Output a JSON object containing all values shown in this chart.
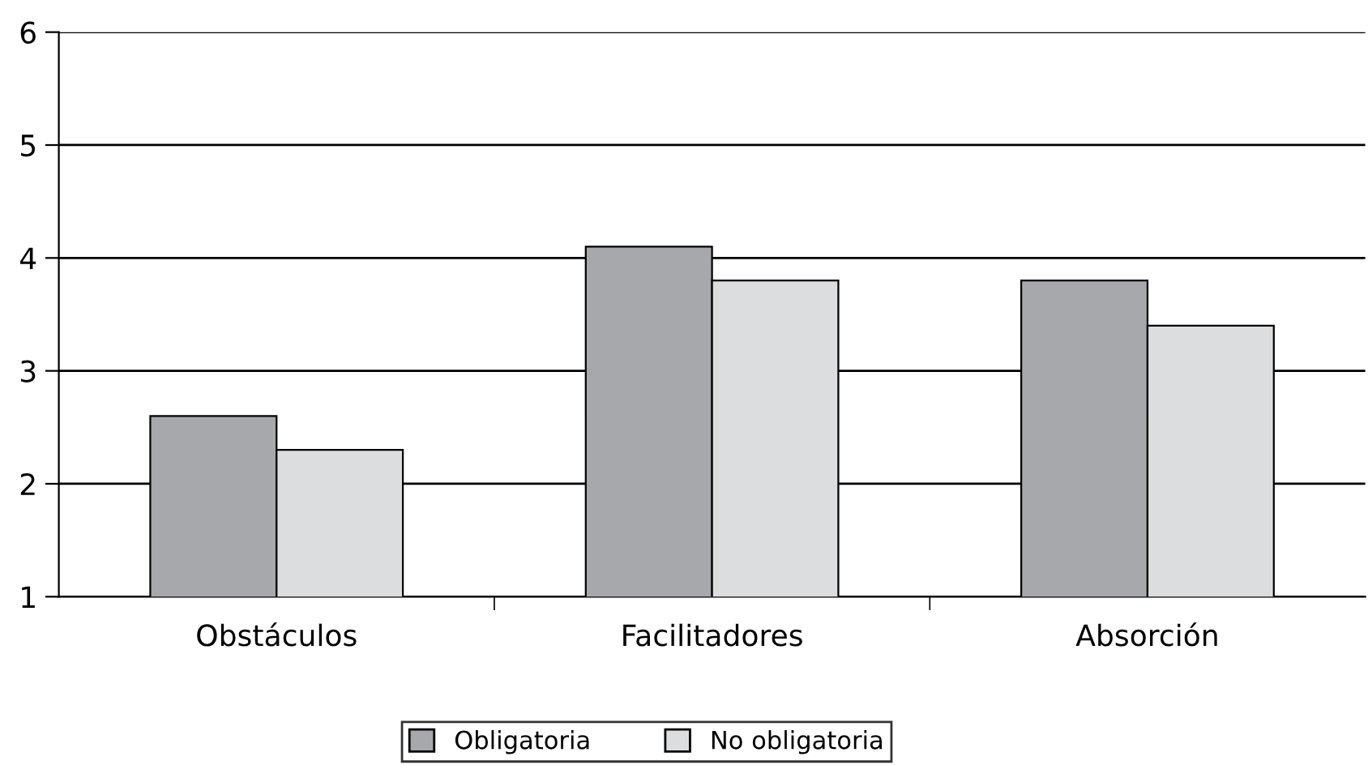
{
  "chart_data": {
    "type": "bar",
    "categories": [
      "Obstáculos",
      "Facilitadores",
      "Absorción"
    ],
    "series": [
      {
        "name": "Obligatoria",
        "color": "#a7a8ac",
        "values": [
          2.6,
          4.1,
          3.8
        ]
      },
      {
        "name": "No obligatoria",
        "color": "#dcdddf",
        "values": [
          2.3,
          3.8,
          3.4
        ]
      }
    ],
    "ylim": [
      1,
      6
    ],
    "yticks": [
      1,
      2,
      3,
      4,
      5,
      6
    ],
    "grid": "y",
    "legend": "bottom"
  }
}
